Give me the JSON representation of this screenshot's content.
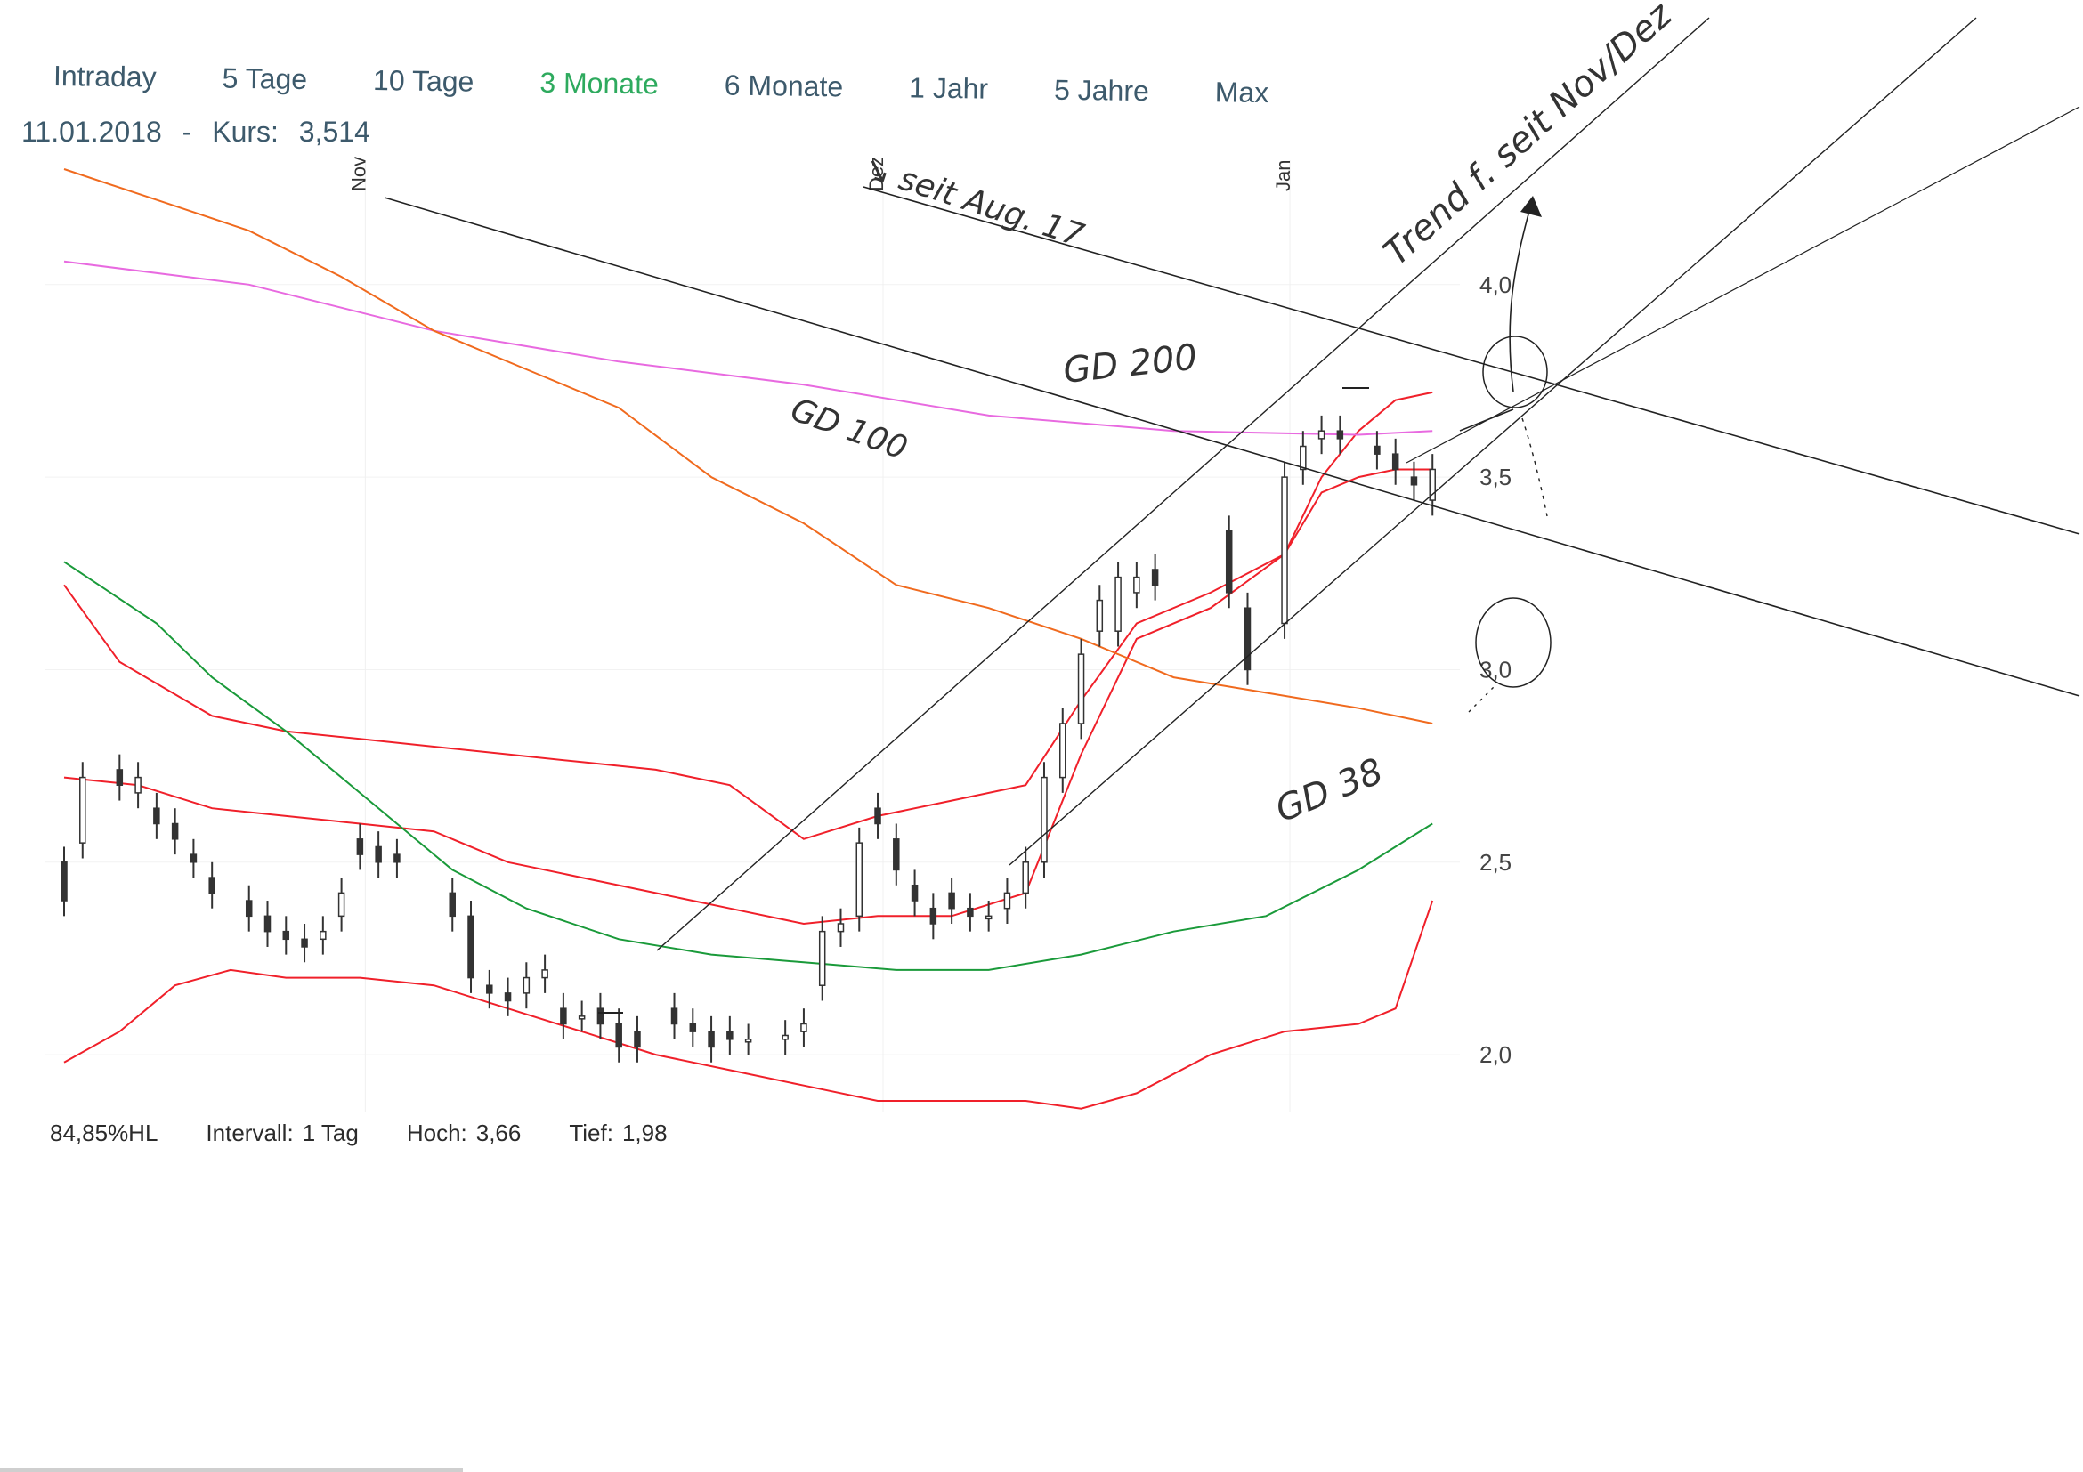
{
  "tabs": [
    {
      "label": "Intraday",
      "active": false
    },
    {
      "label": "5 Tage",
      "active": false
    },
    {
      "label": "10 Tage",
      "active": false
    },
    {
      "label": "3 Monate",
      "active": true
    },
    {
      "label": "6 Monate",
      "active": false
    },
    {
      "label": "1 Jahr",
      "active": false
    },
    {
      "label": "5 Jahre",
      "active": false
    },
    {
      "label": "Max",
      "active": false
    }
  ],
  "header": {
    "date": "11.01.2018",
    "separator": "-",
    "price_label": "Kurs:",
    "price_value": "3,514"
  },
  "footer": {
    "hl_label": "84,85%HL",
    "interval_label": "Intervall:",
    "interval_value": "1 Tag",
    "high_label": "Hoch:",
    "high_value": "3,66",
    "low_label": "Tief:",
    "low_value": "1,98"
  },
  "annotations": {
    "since_aug": "↘ seit Aug. 17",
    "trend": "Trend f. seit Nov/Dez",
    "gd200": "GD 200",
    "gd100": "GD 100",
    "gd38": "GD 38"
  },
  "colors": {
    "active_tab": "#2eaa5e",
    "tab_text": "#3d5a6c",
    "gd200": "#e86ae0",
    "gd100": "#f06a1e",
    "gd38": "#1a9a3a",
    "bollinger": "#f0202a",
    "candle": "#333333",
    "trendline": "#222222"
  },
  "chart_data": {
    "type": "candlestick",
    "months": [
      "Nov",
      "Dez",
      "Jan"
    ],
    "y_ticks": [
      "4,0",
      "3,5",
      "3,0",
      "2,5",
      "2,0"
    ],
    "ylim": [
      1.85,
      4.3
    ],
    "n_days": 76,
    "candles": [
      [
        0,
        2.5,
        2.4
      ],
      [
        1,
        2.55,
        2.72
      ],
      [
        3,
        2.74,
        2.7
      ],
      [
        4,
        2.68,
        2.72
      ],
      [
        5,
        2.64,
        2.6
      ],
      [
        6,
        2.6,
        2.56
      ],
      [
        7,
        2.52,
        2.5
      ],
      [
        8,
        2.46,
        2.42
      ],
      [
        10,
        2.4,
        2.36
      ],
      [
        11,
        2.36,
        2.32
      ],
      [
        12,
        2.32,
        2.3
      ],
      [
        13,
        2.3,
        2.28
      ],
      [
        14,
        2.3,
        2.32
      ],
      [
        15,
        2.36,
        2.42
      ],
      [
        16,
        2.56,
        2.52
      ],
      [
        17,
        2.54,
        2.5
      ],
      [
        18,
        2.52,
        2.5
      ],
      [
        21,
        2.42,
        2.36
      ],
      [
        22,
        2.36,
        2.2
      ],
      [
        23,
        2.18,
        2.16
      ],
      [
        24,
        2.16,
        2.14
      ],
      [
        25,
        2.16,
        2.2
      ],
      [
        26,
        2.2,
        2.22
      ],
      [
        27,
        2.12,
        2.08
      ],
      [
        28,
        2.1,
        2.1
      ],
      [
        29,
        2.12,
        2.08
      ],
      [
        30,
        2.08,
        2.02
      ],
      [
        31,
        2.06,
        2.02
      ],
      [
        33,
        2.12,
        2.08
      ],
      [
        34,
        2.08,
        2.06
      ],
      [
        35,
        2.06,
        2.02
      ],
      [
        36,
        2.06,
        2.04
      ],
      [
        37,
        2.04,
        2.04
      ],
      [
        39,
        2.04,
        2.05
      ],
      [
        40,
        2.06,
        2.08
      ],
      [
        41,
        2.18,
        2.32
      ],
      [
        42,
        2.32,
        2.34
      ],
      [
        43,
        2.36,
        2.55
      ],
      [
        44,
        2.64,
        2.6
      ],
      [
        45,
        2.56,
        2.48
      ],
      [
        46,
        2.44,
        2.4
      ],
      [
        47,
        2.38,
        2.34
      ],
      [
        48,
        2.42,
        2.38
      ],
      [
        49,
        2.38,
        2.36
      ],
      [
        50,
        2.36,
        2.36
      ],
      [
        51,
        2.38,
        2.42
      ],
      [
        52,
        2.42,
        2.5
      ],
      [
        53,
        2.5,
        2.72
      ],
      [
        54,
        2.72,
        2.86
      ],
      [
        55,
        2.86,
        3.04
      ],
      [
        56,
        3.1,
        3.18
      ],
      [
        57,
        3.1,
        3.24
      ],
      [
        58,
        3.2,
        3.24
      ],
      [
        59,
        3.26,
        3.22
      ],
      [
        63,
        3.36,
        3.2
      ],
      [
        64,
        3.16,
        3.0
      ],
      [
        66,
        3.12,
        3.5
      ],
      [
        67,
        3.52,
        3.58
      ],
      [
        68,
        3.6,
        3.62
      ],
      [
        69,
        3.62,
        3.6
      ],
      [
        71,
        3.58,
        3.56
      ],
      [
        72,
        3.56,
        3.52
      ],
      [
        73,
        3.5,
        3.48
      ],
      [
        74,
        3.44,
        3.52
      ]
    ],
    "gd200": [
      [
        0,
        4.06
      ],
      [
        10,
        4.0
      ],
      [
        20,
        3.88
      ],
      [
        30,
        3.8
      ],
      [
        40,
        3.74
      ],
      [
        50,
        3.66
      ],
      [
        60,
        3.62
      ],
      [
        70,
        3.61
      ],
      [
        74,
        3.62
      ]
    ],
    "gd100": [
      [
        0,
        4.3
      ],
      [
        5,
        4.22
      ],
      [
        10,
        4.14
      ],
      [
        15,
        4.02
      ],
      [
        20,
        3.88
      ],
      [
        25,
        3.78
      ],
      [
        30,
        3.68
      ],
      [
        35,
        3.5
      ],
      [
        40,
        3.38
      ],
      [
        45,
        3.22
      ],
      [
        50,
        3.16
      ],
      [
        55,
        3.08
      ],
      [
        60,
        2.98
      ],
      [
        65,
        2.94
      ],
      [
        70,
        2.9
      ],
      [
        74,
        2.86
      ]
    ],
    "gd38": [
      [
        0,
        3.28
      ],
      [
        5,
        3.12
      ],
      [
        8,
        2.98
      ],
      [
        12,
        2.84
      ],
      [
        15,
        2.72
      ],
      [
        18,
        2.6
      ],
      [
        21,
        2.48
      ],
      [
        25,
        2.38
      ],
      [
        30,
        2.3
      ],
      [
        35,
        2.26
      ],
      [
        40,
        2.24
      ],
      [
        45,
        2.22
      ],
      [
        50,
        2.22
      ],
      [
        55,
        2.26
      ],
      [
        60,
        2.32
      ],
      [
        65,
        2.36
      ],
      [
        70,
        2.48
      ],
      [
        74,
        2.6
      ]
    ],
    "bb_upper": [
      [
        0,
        3.22
      ],
      [
        3,
        3.02
      ],
      [
        8,
        2.88
      ],
      [
        12,
        2.84
      ],
      [
        16,
        2.82
      ],
      [
        20,
        2.8
      ],
      [
        24,
        2.78
      ],
      [
        28,
        2.76
      ],
      [
        32,
        2.74
      ],
      [
        36,
        2.7
      ],
      [
        40,
        2.56
      ],
      [
        44,
        2.62
      ],
      [
        48,
        2.66
      ],
      [
        52,
        2.7
      ],
      [
        55,
        2.92
      ],
      [
        58,
        3.12
      ],
      [
        62,
        3.2
      ],
      [
        66,
        3.3
      ],
      [
        68,
        3.46
      ],
      [
        70,
        3.5
      ],
      [
        72,
        3.52
      ],
      [
        74,
        3.52
      ]
    ],
    "bb_mid": [
      [
        0,
        2.72
      ],
      [
        4,
        2.7
      ],
      [
        8,
        2.64
      ],
      [
        12,
        2.62
      ],
      [
        16,
        2.6
      ],
      [
        20,
        2.58
      ],
      [
        24,
        2.5
      ],
      [
        28,
        2.46
      ],
      [
        32,
        2.42
      ],
      [
        36,
        2.38
      ],
      [
        40,
        2.34
      ],
      [
        44,
        2.36
      ],
      [
        48,
        2.36
      ],
      [
        52,
        2.42
      ],
      [
        55,
        2.78
      ],
      [
        58,
        3.08
      ],
      [
        62,
        3.16
      ],
      [
        66,
        3.3
      ],
      [
        68,
        3.5
      ],
      [
        70,
        3.62
      ],
      [
        72,
        3.7
      ],
      [
        74,
        3.72
      ]
    ],
    "bb_lower": [
      [
        0,
        1.98
      ],
      [
        3,
        2.06
      ],
      [
        6,
        2.18
      ],
      [
        9,
        2.22
      ],
      [
        12,
        2.2
      ],
      [
        16,
        2.2
      ],
      [
        20,
        2.18
      ],
      [
        24,
        2.12
      ],
      [
        28,
        2.06
      ],
      [
        32,
        2.0
      ],
      [
        36,
        1.96
      ],
      [
        40,
        1.92
      ],
      [
        44,
        1.88
      ],
      [
        48,
        1.88
      ],
      [
        52,
        1.88
      ],
      [
        55,
        1.86
      ],
      [
        58,
        1.9
      ],
      [
        62,
        2.0
      ],
      [
        66,
        2.06
      ],
      [
        70,
        2.08
      ],
      [
        72,
        2.12
      ],
      [
        74,
        2.4
      ]
    ]
  }
}
